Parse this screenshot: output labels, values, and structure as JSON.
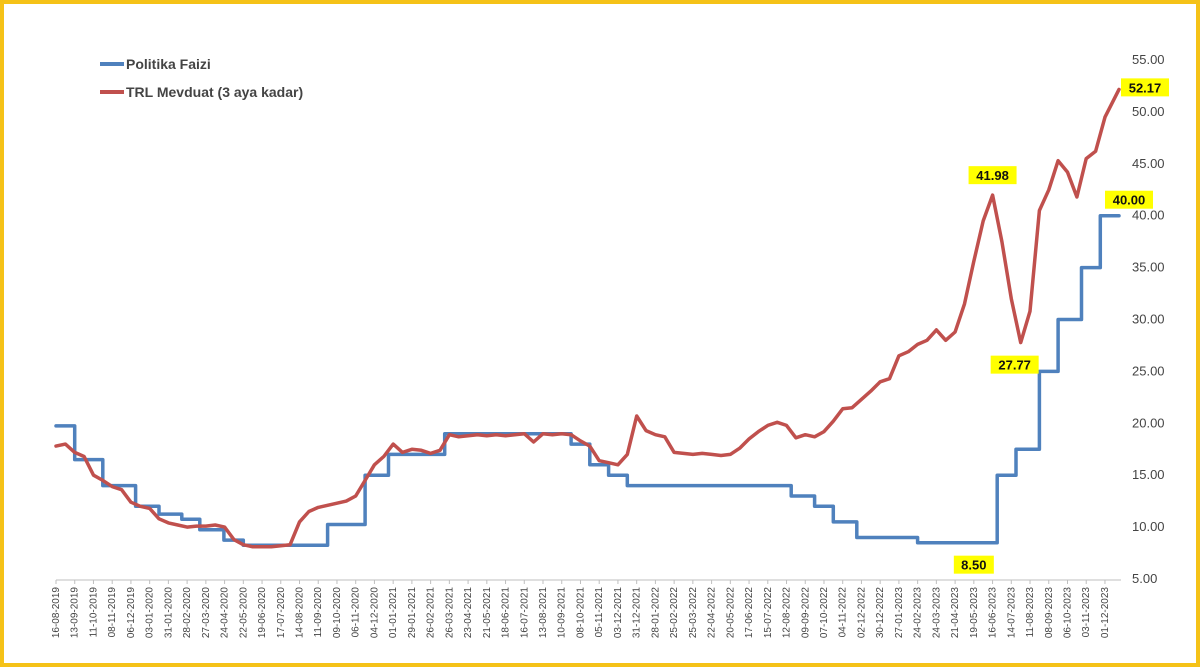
{
  "chart_data": {
    "type": "line",
    "x_type": "date",
    "ylim": [
      5,
      55
    ],
    "y_ticks": [
      "5.00",
      "10.00",
      "15.00",
      "20.00",
      "25.00",
      "30.00",
      "35.00",
      "40.00",
      "45.00",
      "50.00",
      "55.00"
    ],
    "x_ticks": [
      "16-08-2019",
      "13-09-2019",
      "11-10-2019",
      "08-11-2019",
      "06-12-2019",
      "03-01-2020",
      "31-01-2020",
      "28-02-2020",
      "27-03-2020",
      "24-04-2020",
      "22-05-2020",
      "19-06-2020",
      "17-07-2020",
      "14-08-2020",
      "11-09-2020",
      "09-10-2020",
      "06-11-2020",
      "04-12-2020",
      "01-01-2021",
      "29-01-2021",
      "26-02-2021",
      "26-03-2021",
      "23-04-2021",
      "21-05-2021",
      "18-06-2021",
      "16-07-2021",
      "13-08-2021",
      "10-09-2021",
      "08-10-2021",
      "05-11-2021",
      "03-12-2021",
      "31-12-2021",
      "28-01-2022",
      "25-02-2022",
      "25-03-2022",
      "22-04-2022",
      "20-05-2022",
      "17-06-2022",
      "15-07-2022",
      "12-08-2022",
      "09-09-2022",
      "07-10-2022",
      "04-11-2022",
      "02-12-2022",
      "30-12-2022",
      "27-01-2023",
      "24-02-2023",
      "24-03-2023",
      "21-04-2023",
      "19-05-2023",
      "16-06-2023",
      "14-07-2023",
      "11-08-2023",
      "08-09-2023",
      "06-10-2023",
      "03-11-2023",
      "01-12-2023"
    ],
    "grid": false,
    "legend_position": "top-left",
    "series": [
      {
        "name": "Politika Faizi",
        "color": "#4f81bd",
        "step": true,
        "points": [
          [
            "2019-08-16",
            19.75
          ],
          [
            "2019-09-13",
            16.5
          ],
          [
            "2019-10-25",
            14.0
          ],
          [
            "2019-12-13",
            12.0
          ],
          [
            "2020-01-17",
            11.25
          ],
          [
            "2020-02-20",
            10.75
          ],
          [
            "2020-03-18",
            9.75
          ],
          [
            "2020-04-23",
            8.75
          ],
          [
            "2020-05-22",
            8.25
          ],
          [
            "2020-09-25",
            10.25
          ],
          [
            "2020-11-20",
            15.0
          ],
          [
            "2020-12-25",
            17.0
          ],
          [
            "2021-03-19",
            19.0
          ],
          [
            "2021-09-24",
            18.0
          ],
          [
            "2021-10-22",
            16.0
          ],
          [
            "2021-11-19",
            15.0
          ],
          [
            "2021-12-17",
            14.0
          ],
          [
            "2022-08-19",
            13.0
          ],
          [
            "2022-09-23",
            12.0
          ],
          [
            "2022-10-21",
            10.5
          ],
          [
            "2022-11-25",
            9.0
          ],
          [
            "2023-02-24",
            8.5
          ],
          [
            "2023-06-23",
            15.0
          ],
          [
            "2023-07-21",
            17.5
          ],
          [
            "2023-08-25",
            25.0
          ],
          [
            "2023-09-22",
            30.0
          ],
          [
            "2023-10-27",
            35.0
          ],
          [
            "2023-11-24",
            40.0
          ],
          [
            "2023-12-22",
            40.0
          ]
        ]
      },
      {
        "name": "TRL Mevduat (3 aya kadar)",
        "color": "#c0504d",
        "step": false,
        "points": [
          [
            "2019-08-16",
            17.8
          ],
          [
            "2019-08-30",
            18.0
          ],
          [
            "2019-09-13",
            17.2
          ],
          [
            "2019-09-27",
            16.8
          ],
          [
            "2019-10-11",
            15.0
          ],
          [
            "2019-10-25",
            14.5
          ],
          [
            "2019-11-08",
            13.9
          ],
          [
            "2019-11-22",
            13.6
          ],
          [
            "2019-12-06",
            12.4
          ],
          [
            "2019-12-20",
            12.0
          ],
          [
            "2020-01-03",
            11.8
          ],
          [
            "2020-01-17",
            10.8
          ],
          [
            "2020-01-31",
            10.4
          ],
          [
            "2020-02-14",
            10.2
          ],
          [
            "2020-02-28",
            10.0
          ],
          [
            "2020-03-13",
            10.1
          ],
          [
            "2020-03-27",
            10.1
          ],
          [
            "2020-04-10",
            10.2
          ],
          [
            "2020-04-24",
            10.0
          ],
          [
            "2020-05-08",
            8.8
          ],
          [
            "2020-05-22",
            8.3
          ],
          [
            "2020-06-05",
            8.1
          ],
          [
            "2020-06-19",
            8.1
          ],
          [
            "2020-07-03",
            8.1
          ],
          [
            "2020-07-17",
            8.2
          ],
          [
            "2020-07-31",
            8.3
          ],
          [
            "2020-08-14",
            10.5
          ],
          [
            "2020-08-28",
            11.5
          ],
          [
            "2020-09-11",
            11.9
          ],
          [
            "2020-09-25",
            12.1
          ],
          [
            "2020-10-09",
            12.3
          ],
          [
            "2020-10-23",
            12.5
          ],
          [
            "2020-11-06",
            13.0
          ],
          [
            "2020-11-20",
            14.5
          ],
          [
            "2020-12-04",
            16.0
          ],
          [
            "2020-12-18",
            16.8
          ],
          [
            "2021-01-01",
            18.0
          ],
          [
            "2021-01-15",
            17.2
          ],
          [
            "2021-01-29",
            17.5
          ],
          [
            "2021-02-12",
            17.4
          ],
          [
            "2021-02-26",
            17.1
          ],
          [
            "2021-03-12",
            17.4
          ],
          [
            "2021-03-26",
            18.9
          ],
          [
            "2021-04-09",
            18.7
          ],
          [
            "2021-04-23",
            18.8
          ],
          [
            "2021-05-07",
            18.9
          ],
          [
            "2021-05-21",
            18.8
          ],
          [
            "2021-06-04",
            18.9
          ],
          [
            "2021-06-18",
            18.8
          ],
          [
            "2021-07-02",
            18.9
          ],
          [
            "2021-07-16",
            19.0
          ],
          [
            "2021-07-30",
            18.2
          ],
          [
            "2021-08-13",
            19.0
          ],
          [
            "2021-08-27",
            18.9
          ],
          [
            "2021-09-10",
            19.0
          ],
          [
            "2021-09-24",
            18.9
          ],
          [
            "2021-10-08",
            18.3
          ],
          [
            "2021-10-22",
            17.8
          ],
          [
            "2021-11-05",
            16.4
          ],
          [
            "2021-11-19",
            16.2
          ],
          [
            "2021-12-03",
            16.0
          ],
          [
            "2021-12-17",
            17.0
          ],
          [
            "2021-12-31",
            20.7
          ],
          [
            "2022-01-14",
            19.3
          ],
          [
            "2022-01-28",
            18.9
          ],
          [
            "2022-02-11",
            18.7
          ],
          [
            "2022-02-25",
            17.2
          ],
          [
            "2022-03-11",
            17.1
          ],
          [
            "2022-03-25",
            17.0
          ],
          [
            "2022-04-08",
            17.1
          ],
          [
            "2022-04-22",
            17.0
          ],
          [
            "2022-05-06",
            16.9
          ],
          [
            "2022-05-20",
            17.0
          ],
          [
            "2022-06-03",
            17.6
          ],
          [
            "2022-06-17",
            18.5
          ],
          [
            "2022-07-01",
            19.2
          ],
          [
            "2022-07-15",
            19.8
          ],
          [
            "2022-07-29",
            20.1
          ],
          [
            "2022-08-12",
            19.8
          ],
          [
            "2022-08-26",
            18.6
          ],
          [
            "2022-09-09",
            18.9
          ],
          [
            "2022-09-23",
            18.7
          ],
          [
            "2022-10-07",
            19.2
          ],
          [
            "2022-10-21",
            20.2
          ],
          [
            "2022-11-04",
            21.4
          ],
          [
            "2022-11-18",
            21.5
          ],
          [
            "2022-12-02",
            22.3
          ],
          [
            "2022-12-16",
            23.1
          ],
          [
            "2022-12-30",
            24.0
          ],
          [
            "2023-01-13",
            24.3
          ],
          [
            "2023-01-27",
            26.5
          ],
          [
            "2023-02-10",
            26.9
          ],
          [
            "2023-02-24",
            27.6
          ],
          [
            "2023-03-10",
            28.0
          ],
          [
            "2023-03-24",
            29.0
          ],
          [
            "2023-04-07",
            28.0
          ],
          [
            "2023-04-21",
            28.8
          ],
          [
            "2023-05-05",
            31.5
          ],
          [
            "2023-05-19",
            35.6
          ],
          [
            "2023-06-02",
            39.5
          ],
          [
            "2023-06-16",
            41.98
          ],
          [
            "2023-06-30",
            37.5
          ],
          [
            "2023-07-14",
            32.0
          ],
          [
            "2023-07-28",
            27.77
          ],
          [
            "2023-08-11",
            30.8
          ],
          [
            "2023-08-25",
            40.5
          ],
          [
            "2023-09-08",
            42.5
          ],
          [
            "2023-09-22",
            45.3
          ],
          [
            "2023-10-06",
            44.2
          ],
          [
            "2023-10-20",
            41.8
          ],
          [
            "2023-11-03",
            45.5
          ],
          [
            "2023-11-17",
            46.2
          ],
          [
            "2023-12-01",
            49.5
          ],
          [
            "2023-12-22",
            52.17
          ]
        ]
      }
    ],
    "annotations": [
      {
        "text": "41.98",
        "date": "2023-06-16",
        "value": 41.98,
        "placement": "above"
      },
      {
        "text": "27.77",
        "date": "2023-07-28",
        "value": 27.77,
        "placement": "below-left"
      },
      {
        "text": "8.50",
        "date": "2023-05-19",
        "value": 8.5,
        "placement": "below"
      },
      {
        "text": "40.00",
        "date": "2023-12-22",
        "value": 40.0,
        "placement": "above-right"
      },
      {
        "text": "52.17",
        "date": "2023-12-22",
        "value": 52.17,
        "placement": "right"
      }
    ],
    "callout_color": "#ffff00"
  }
}
